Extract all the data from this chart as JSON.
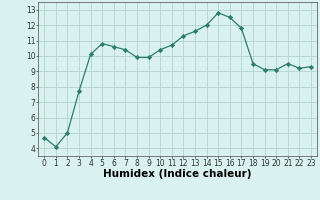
{
  "x": [
    0,
    1,
    2,
    3,
    4,
    5,
    6,
    7,
    8,
    9,
    10,
    11,
    12,
    13,
    14,
    15,
    16,
    17,
    18,
    19,
    20,
    21,
    22,
    23
  ],
  "y": [
    4.7,
    4.1,
    5.0,
    7.7,
    10.1,
    10.8,
    10.6,
    10.4,
    9.9,
    9.9,
    10.4,
    10.7,
    11.3,
    11.6,
    12.0,
    12.8,
    12.5,
    11.8,
    9.5,
    9.1,
    9.1,
    9.5,
    9.2,
    9.3
  ],
  "line_color": "#2d7d6d",
  "marker": "D",
  "marker_size": 2.2,
  "bg_color": "#d9f2f0",
  "grid_color": "#b8d8d5",
  "xlabel": "Humidex (Indice chaleur)",
  "xlim": [
    -0.5,
    23.5
  ],
  "ylim": [
    3.5,
    13.5
  ],
  "yticks": [
    4,
    5,
    6,
    7,
    8,
    9,
    10,
    11,
    12,
    13
  ],
  "xticks": [
    0,
    1,
    2,
    3,
    4,
    5,
    6,
    7,
    8,
    9,
    10,
    11,
    12,
    13,
    14,
    15,
    16,
    17,
    18,
    19,
    20,
    21,
    22,
    23
  ],
  "tick_fontsize": 5.5,
  "xlabel_fontsize": 7.5,
  "linewidth": 0.9
}
